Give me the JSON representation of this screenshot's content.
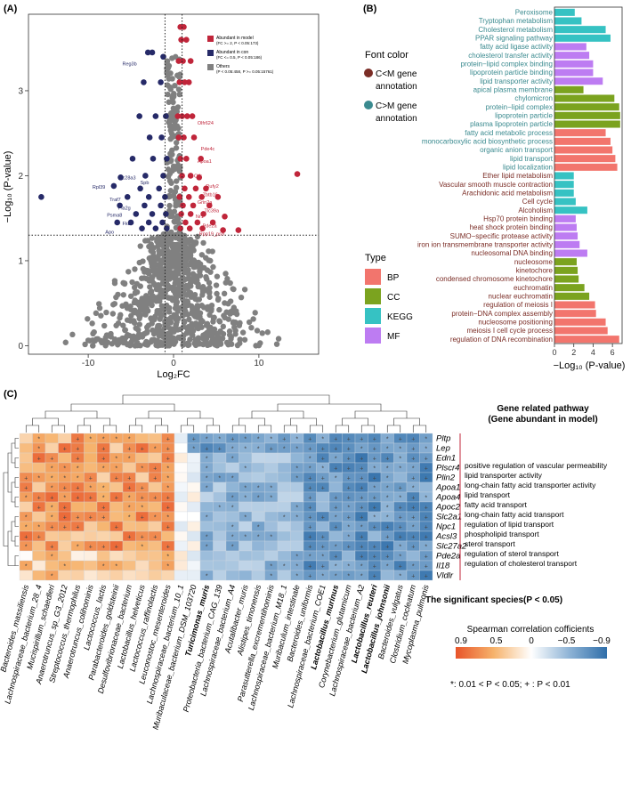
{
  "panels": {
    "A": {
      "label": "(A)"
    },
    "B": {
      "label": "(B)"
    },
    "C": {
      "label": "(C)"
    }
  },
  "chart_data": [
    {
      "id": "volcano",
      "type": "scatter",
      "title": "",
      "xlabel": "Log₂FC",
      "ylabel": "−Log₁₀ (P-value)",
      "xlim": [
        -17,
        17
      ],
      "ylim": [
        -0.1,
        3.9
      ],
      "xticks": [
        -10,
        0,
        10
      ],
      "yticks": [
        0,
        1,
        2,
        3
      ],
      "thresholds": {
        "x": [
          -1,
          1
        ],
        "y": 1.3
      },
      "colors": {
        "up": "#c0253a",
        "down": "#262a68",
        "other": "#808080"
      },
      "legend": [
        {
          "key": "up",
          "label": "Abundant in model",
          "sub": "(FC >= 2, P < 0.05:173)"
        },
        {
          "key": "down",
          "label": "Abundant in con",
          "sub": "(FC <= 0.5, P < 0.05:186)"
        },
        {
          "key": "other",
          "label": "Others",
          "sub": "(P < 0.05:458, P >= 0.05:15761)"
        }
      ],
      "up_points": [
        [
          0.8,
          3.75
        ],
        [
          1.2,
          3.75
        ],
        [
          0.9,
          3.6
        ],
        [
          1.5,
          3.6
        ],
        [
          0.6,
          3.35
        ],
        [
          1.1,
          3.35
        ],
        [
          2.0,
          3.35
        ],
        [
          0.7,
          3.1
        ],
        [
          1.3,
          3.1
        ],
        [
          1.8,
          3.1
        ],
        [
          0.5,
          2.7
        ],
        [
          1.0,
          2.7
        ],
        [
          1.6,
          2.7
        ],
        [
          2.2,
          2.7
        ],
        [
          0.6,
          2.45
        ],
        [
          1.2,
          2.45
        ],
        [
          2.4,
          2.45
        ],
        [
          0.8,
          2.2
        ],
        [
          1.5,
          2.2
        ],
        [
          3.2,
          2.2
        ],
        [
          1.0,
          2.0
        ],
        [
          2.0,
          2.0
        ],
        [
          3.0,
          1.98
        ],
        [
          1.3,
          1.85
        ],
        [
          2.6,
          1.85
        ],
        [
          3.8,
          1.85
        ],
        [
          0.7,
          1.75
        ],
        [
          1.8,
          1.75
        ],
        [
          3.3,
          1.75
        ],
        [
          5.2,
          1.75
        ],
        [
          1.1,
          1.65
        ],
        [
          2.3,
          1.65
        ],
        [
          4.2,
          1.65
        ],
        [
          0.9,
          1.55
        ],
        [
          2.0,
          1.55
        ],
        [
          3.5,
          1.55
        ],
        [
          6.0,
          1.52
        ],
        [
          1.4,
          1.45
        ],
        [
          2.8,
          1.45
        ],
        [
          4.6,
          1.45
        ],
        [
          0.8,
          1.38
        ],
        [
          1.9,
          1.38
        ],
        [
          3.4,
          1.38
        ],
        [
          5.8,
          1.36
        ],
        [
          7.6,
          1.36
        ],
        [
          14.5,
          2.02
        ]
      ],
      "down_points": [
        [
          -1.2,
          3.4
        ],
        [
          -2.5,
          3.45
        ],
        [
          -3.0,
          3.45
        ],
        [
          -1.5,
          3.1
        ],
        [
          -3.5,
          3.1
        ],
        [
          -0.9,
          2.7
        ],
        [
          -2.1,
          2.7
        ],
        [
          -4.0,
          2.7
        ],
        [
          -1.4,
          2.45
        ],
        [
          -2.8,
          2.45
        ],
        [
          -0.8,
          2.2
        ],
        [
          -2.4,
          2.2
        ],
        [
          -4.8,
          2.2
        ],
        [
          -1.2,
          2.0
        ],
        [
          -3.3,
          2.0
        ],
        [
          -6.2,
          1.98
        ],
        [
          -1.7,
          1.85
        ],
        [
          -3.9,
          1.85
        ],
        [
          -7.0,
          1.88
        ],
        [
          -1.0,
          1.75
        ],
        [
          -2.9,
          1.75
        ],
        [
          -5.4,
          1.75
        ],
        [
          -1.5,
          1.65
        ],
        [
          -3.4,
          1.65
        ],
        [
          -6.3,
          1.65
        ],
        [
          -0.9,
          1.55
        ],
        [
          -2.5,
          1.55
        ],
        [
          -4.4,
          1.55
        ],
        [
          -1.3,
          1.45
        ],
        [
          -2.9,
          1.45
        ],
        [
          -5.0,
          1.45
        ],
        [
          -6.6,
          1.45
        ],
        [
          -0.8,
          1.38
        ],
        [
          -2.1,
          1.38
        ],
        [
          -3.7,
          1.38
        ],
        [
          -15.5,
          1.75
        ]
      ],
      "labels_up": [
        {
          "text": "Olfr624",
          "x": 2.8,
          "y": 2.6
        },
        {
          "text": "Pde4c",
          "x": 3.2,
          "y": 2.3
        },
        {
          "text": "Apoa1",
          "x": 2.8,
          "y": 2.15
        },
        {
          "text": "Olfr",
          "x": 2.4,
          "y": 1.98
        },
        {
          "text": "Rufy2",
          "x": 3.8,
          "y": 1.86
        },
        {
          "text": "Zbtb16",
          "x": 3.4,
          "y": 1.76
        },
        {
          "text": "Grin2a",
          "x": 2.8,
          "y": 1.67
        },
        {
          "text": "Tlc39a",
          "x": 3.6,
          "y": 1.57
        },
        {
          "text": "Nr1",
          "x": 2.6,
          "y": 1.5
        },
        {
          "text": "Pde2a",
          "x": 3.4,
          "y": 1.39
        },
        {
          "text": "Rpp19_ps9",
          "x": 3.0,
          "y": 1.3
        }
      ],
      "labels_down": [
        {
          "text": "Reg3b",
          "x": -6.0,
          "y": 3.3
        },
        {
          "text": "Slc28a3",
          "x": -6.5,
          "y": 1.96
        },
        {
          "text": "Spb",
          "x": -3.9,
          "y": 1.9
        },
        {
          "text": "Rpl39",
          "x": -9.5,
          "y": 1.85
        },
        {
          "text": "Traf7",
          "x": -7.5,
          "y": 1.7
        },
        {
          "text": "Pla2g",
          "x": -6.5,
          "y": 1.6
        },
        {
          "text": "Psma8",
          "x": -7.8,
          "y": 1.52
        },
        {
          "text": "Fkb",
          "x": -6.0,
          "y": 1.42
        },
        {
          "text": "Apo",
          "x": -8.0,
          "y": 1.32
        }
      ]
    },
    {
      "id": "enrichment",
      "type": "bar",
      "orientation": "horizontal",
      "xlabel": "−Log₁₀ (P-value)",
      "xlim": [
        0,
        7
      ],
      "xticks": [
        0,
        2,
        4,
        6
      ],
      "font_color_title": "Font color",
      "font_color_legend": [
        {
          "label": "C<M gene annotation",
          "color": "#7b2d26"
        },
        {
          "label": "C>M gene annotation",
          "color": "#3a8a8f"
        }
      ],
      "type_title": "Type",
      "type_legend": [
        {
          "label": "BP",
          "color": "#f2756d"
        },
        {
          "label": "CC",
          "color": "#7ba31f"
        },
        {
          "label": "KEGG",
          "color": "#36c2c3"
        },
        {
          "label": "MF",
          "color": "#bd7cf2"
        }
      ],
      "categories": [
        "Peroxisome",
        "Tryptophan metabolism",
        "Cholesterol metabolism",
        "PPAR signaling pathway",
        "fatty acid ligase activity",
        "cholesterol transfer activity",
        "protein−lipid complex binding",
        "lipoprotein particle binding",
        "lipid transporter activity",
        "apical plasma membrane",
        "chylomicron",
        "protein−lipid complex",
        "lipoprotein particle",
        "plasma lipoprotein particle",
        "fatty acid metabolic process",
        "monocarboxylic acid biosynthetic process",
        "organic anion transport",
        "lipid transport",
        "lipid localization",
        "Ether lipid metabolism",
        "Vascular smooth muscle contraction",
        "Arachidonic acid metabolism",
        "Cell cycle",
        "Alcoholism",
        "Hsp70 protein binding",
        "heat shock protein binding",
        "SUMO−specific protease activity",
        "iron ion transmembrane transporter activity",
        "nucleosomal DNA binding",
        "nucleosome",
        "kinetochore",
        "condensed chromosome kinetochore",
        "euchromatin",
        "nuclear euchromatin",
        "regulation of meiosis I",
        "protein−DNA complex assembly",
        "nucleosome positioning",
        "meiosis I cell cycle process",
        "regulation of DNA recombination"
      ],
      "values": [
        2.1,
        2.8,
        5.3,
        5.8,
        3.3,
        3.6,
        4.0,
        4.0,
        5.0,
        3.0,
        6.2,
        6.7,
        6.8,
        6.8,
        5.3,
        5.8,
        6.0,
        6.3,
        6.5,
        2.0,
        2.0,
        2.0,
        2.2,
        3.4,
        2.2,
        2.3,
        2.4,
        2.6,
        3.4,
        2.3,
        2.4,
        2.5,
        3.1,
        3.6,
        4.2,
        4.3,
        5.3,
        5.5,
        6.7
      ],
      "types": [
        "KEGG",
        "KEGG",
        "KEGG",
        "KEGG",
        "MF",
        "MF",
        "MF",
        "MF",
        "MF",
        "CC",
        "CC",
        "CC",
        "CC",
        "CC",
        "BP",
        "BP",
        "BP",
        "BP",
        "BP",
        "KEGG",
        "KEGG",
        "KEGG",
        "KEGG",
        "KEGG",
        "MF",
        "MF",
        "MF",
        "MF",
        "MF",
        "CC",
        "CC",
        "CC",
        "CC",
        "CC",
        "BP",
        "BP",
        "BP",
        "BP",
        "BP"
      ],
      "label_colors": [
        "teal",
        "teal",
        "teal",
        "teal",
        "teal",
        "teal",
        "teal",
        "teal",
        "teal",
        "teal",
        "teal",
        "teal",
        "teal",
        "teal",
        "teal",
        "teal",
        "teal",
        "teal",
        "teal",
        "brown",
        "brown",
        "brown",
        "brown",
        "brown",
        "brown",
        "brown",
        "brown",
        "brown",
        "brown",
        "brown",
        "brown",
        "brown",
        "brown",
        "brown",
        "brown",
        "brown",
        "brown",
        "brown",
        "brown"
      ]
    },
    {
      "id": "correlation",
      "type": "heatmap",
      "rows": [
        "Pltp",
        "Lep",
        "Edn1",
        "Plscr4",
        "Plin2",
        "Apoa1",
        "Apoa4",
        "Apoc2",
        "Slc2a1",
        "Npc1",
        "Acsl3",
        "Slc27a2",
        "Pde2a",
        "Il18",
        "Vldlr"
      ],
      "columns": [
        "Bacteroides_massiliensis",
        "Lachnospiraceae_bacterium_28_4",
        "Mucispirillum_schaedleri",
        "Anaerotruncus_sp_G3_2012",
        "Streptococcus_thermophilus",
        "Anaerotruncus_colihominis",
        "Lactococcus_lactis",
        "Parabacteroides_goldsteinii",
        "Desulfovibrionaceae_bacterium",
        "Lactobacillus_helveticus",
        "Lactococcus_raffinolactis",
        "Leuconostoc_mesenteroides",
        "Lachnospiraceae_bacterium_10_1",
        "Muribaculaceae_bacterium_DSM_103720",
        "Turicimonas_muris",
        "Proteobacteria_bacterium_CAG_139",
        "Lachnospiraceae_bacterium_A4",
        "Acutalibacter_muris",
        "Alistipes_timonensis",
        "Parasutterella_excrementihominis",
        "Lachnospiraceae_bacterium_M18_1",
        "Muribaculum_intestinale",
        "Bacteroides_uniformis",
        "Lachnospiraceae_bacterium_COE1",
        "Lactobacillus_murinus",
        "Corynebacterium_glutamicum",
        "Lachnospiraceae_bacterium_A2",
        "Lactobacillus_reuteri",
        "Lactobacillus_johnsonii",
        "Bacteroides_vulgatus",
        "Clostridium_cocleatum",
        "Mycoplasma_pulmonis"
      ],
      "bold_columns": [
        "Turicimonas_muris",
        "Lactobacillus_murinus",
        "Lactobacillus_reuteri",
        "Lactobacillus_johnsonii"
      ],
      "pathway_title": "Gene related pathway",
      "pathway_subtitle": "(Gene abundant in model)",
      "pathways": [
        "positive regulation of vascular permeability",
        "lipid transporter activity",
        "long-chain fatty acid transporter activity",
        "lipid transport",
        "fatty acid transport",
        "long-chain fatty acid transport",
        "regulation of lipid transport",
        "phospholipid transport",
        "sterol transport",
        "regulation of sterol transport",
        "regulation of cholesterol transport"
      ],
      "species_caption": "The significant species(P < 0.05)",
      "colorbar_title": "Spearman correlation cofficients",
      "colorbar_ticks": [
        "0.9",
        "0.5",
        "0",
        "−0.5",
        "−0.9"
      ],
      "significance_note": "*: 0.01 < P < 0.05; + : P < 0.01",
      "value_range": [
        -0.9,
        0.9
      ]
    }
  ]
}
